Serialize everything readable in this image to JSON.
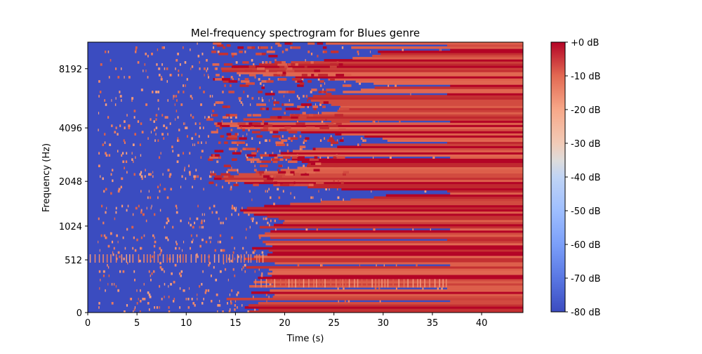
{
  "chart_data": {
    "type": "heatmap",
    "title": "Mel-frequency spectrogram for Blues genre",
    "xlabel": "Time (s)",
    "ylabel": "Frequency (Hz)",
    "xlim": [
      0,
      44.2
    ],
    "x_ticks": [
      0,
      5,
      10,
      15,
      20,
      25,
      30,
      35,
      40
    ],
    "y_ticks": [
      {
        "label": "0",
        "value": 0
      },
      {
        "label": "512",
        "value": 512
      },
      {
        "label": "1024",
        "value": 1024
      },
      {
        "label": "2048",
        "value": 2048
      },
      {
        "label": "4096",
        "value": 4096
      },
      {
        "label": "8192",
        "value": 8192
      }
    ],
    "y_scale": "mel",
    "colorbar": {
      "colormap": "coolwarm",
      "min_db": -80,
      "max_db": 0,
      "tick_labels": [
        "+0 dB",
        "-10 dB",
        "-20 dB",
        "-30 dB",
        "-40 dB",
        "-50 dB",
        "-60 dB",
        "-70 dB",
        "-80 dB"
      ],
      "tick_values": [
        0,
        -10,
        -20,
        -30,
        -40,
        -50,
        -60,
        -70,
        -80
      ]
    },
    "colors": {
      "low": "#3b4cc0",
      "mid": "#dddddd",
      "high": "#b40426"
    }
  }
}
